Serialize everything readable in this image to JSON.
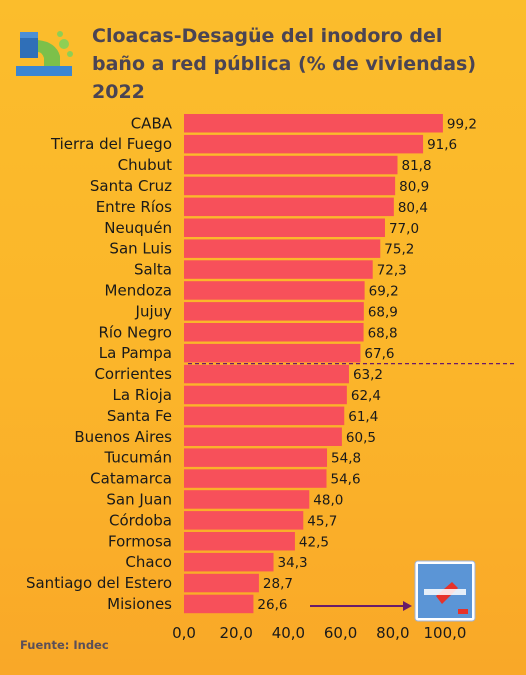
{
  "icon": "sewage-drain-icon",
  "badge_icon": "misiones-logo-icon",
  "chart_data": {
    "type": "bar",
    "orientation": "horizontal",
    "title_lines": [
      "Cloacas-Desagüe del inodoro del",
      "baño a red pública (% de viviendas)",
      "2022"
    ],
    "categories": [
      "CABA",
      "Tierra del Fuego",
      "Chubut",
      "Santa Cruz",
      "Entre Ríos",
      "Neuquén",
      "San Luis",
      "Salta",
      "Mendoza",
      "Jujuy",
      "Río Negro",
      "La Pampa",
      "Corrientes",
      "La Rioja",
      "Santa Fe",
      "Buenos Aires",
      "Tucumán",
      "Catamarca",
      "San Juan",
      "Córdoba",
      "Formosa",
      "Chaco",
      "Santiago del Estero",
      "Misiones"
    ],
    "values": [
      99.2,
      91.6,
      81.8,
      80.9,
      80.4,
      77.0,
      75.2,
      72.3,
      69.2,
      68.9,
      68.8,
      67.6,
      63.2,
      62.4,
      61.4,
      60.5,
      54.8,
      54.6,
      48.0,
      45.7,
      42.5,
      34.3,
      28.7,
      26.6
    ],
    "value_labels": [
      "99,2",
      "91,6",
      "81,8",
      "80,9",
      "80,4",
      "77,0",
      "75,2",
      "72,3",
      "69,2",
      "68,9",
      "68,8",
      "67,6",
      "63,2",
      "62,4",
      "61,4",
      "60,5",
      "54,8",
      "54,6",
      "48,0",
      "45,7",
      "42,5",
      "34,3",
      "28,7",
      "26,6"
    ],
    "x_ticks": [
      "0,0",
      "20,0",
      "40,0",
      "60,0",
      "80,0",
      "100,0"
    ],
    "x_tick_values": [
      0,
      20,
      40,
      60,
      80,
      100
    ],
    "xlim": [
      0,
      100
    ],
    "bar_color": "#f7505a",
    "arrow_color": "#6a1b6a",
    "grid": false,
    "source": "Fuente: Indec"
  }
}
